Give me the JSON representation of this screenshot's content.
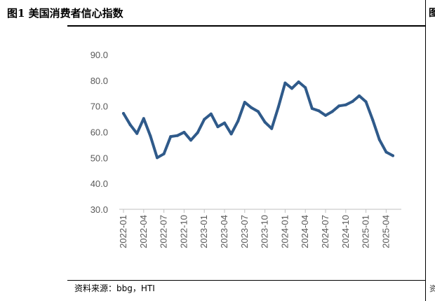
{
  "header": {
    "title": "图1   美国消费者信心指数"
  },
  "source": "资料来源：bbg，HTI",
  "edge": {
    "glyph_top": "图",
    "glyph_bottom": "资"
  },
  "chart_data": {
    "type": "line",
    "title": "美国消费者信心指数",
    "xlabel": "",
    "ylabel": "",
    "ylim": [
      30,
      90
    ],
    "yticks": [
      "30.0",
      "40.0",
      "50.0",
      "60.0",
      "70.0",
      "80.0",
      "90.0"
    ],
    "xticks": [
      "2022-01",
      "2022-04",
      "2022-07",
      "2022-10",
      "2023-01",
      "2023-04",
      "2023-07",
      "2023-10",
      "2024-01",
      "2024-04",
      "2024-07",
      "2024-10",
      "2025-01",
      "2025-04"
    ],
    "grid": false,
    "legend": "none",
    "color": "#2f5a8a",
    "series": [
      {
        "x": [
          "2022-01",
          "2022-02",
          "2022-03",
          "2022-04",
          "2022-05",
          "2022-06",
          "2022-07",
          "2022-08",
          "2022-09",
          "2022-10",
          "2022-11",
          "2022-12",
          "2023-01",
          "2023-02",
          "2023-03",
          "2023-04",
          "2023-05",
          "2023-06",
          "2023-07",
          "2023-08",
          "2023-09",
          "2023-10",
          "2023-11",
          "2023-12",
          "2024-01",
          "2024-02",
          "2024-03",
          "2024-04",
          "2024-05",
          "2024-06",
          "2024-07",
          "2024-08",
          "2024-09",
          "2024-10",
          "2024-11",
          "2024-12",
          "2025-01",
          "2025-02",
          "2025-03",
          "2025-04",
          "2025-05"
        ],
        "values": [
          67.2,
          62.8,
          59.4,
          65.2,
          58.4,
          50.0,
          51.5,
          58.2,
          58.6,
          59.9,
          56.8,
          59.7,
          64.9,
          67.0,
          62.0,
          63.5,
          59.2,
          64.2,
          71.5,
          69.4,
          67.9,
          63.8,
          61.3,
          69.7,
          79.0,
          76.9,
          79.4,
          77.2,
          69.1,
          68.2,
          66.4,
          67.9,
          70.1,
          70.5,
          71.8,
          74.0,
          71.7,
          64.7,
          57.0,
          52.2,
          50.8
        ]
      }
    ]
  }
}
